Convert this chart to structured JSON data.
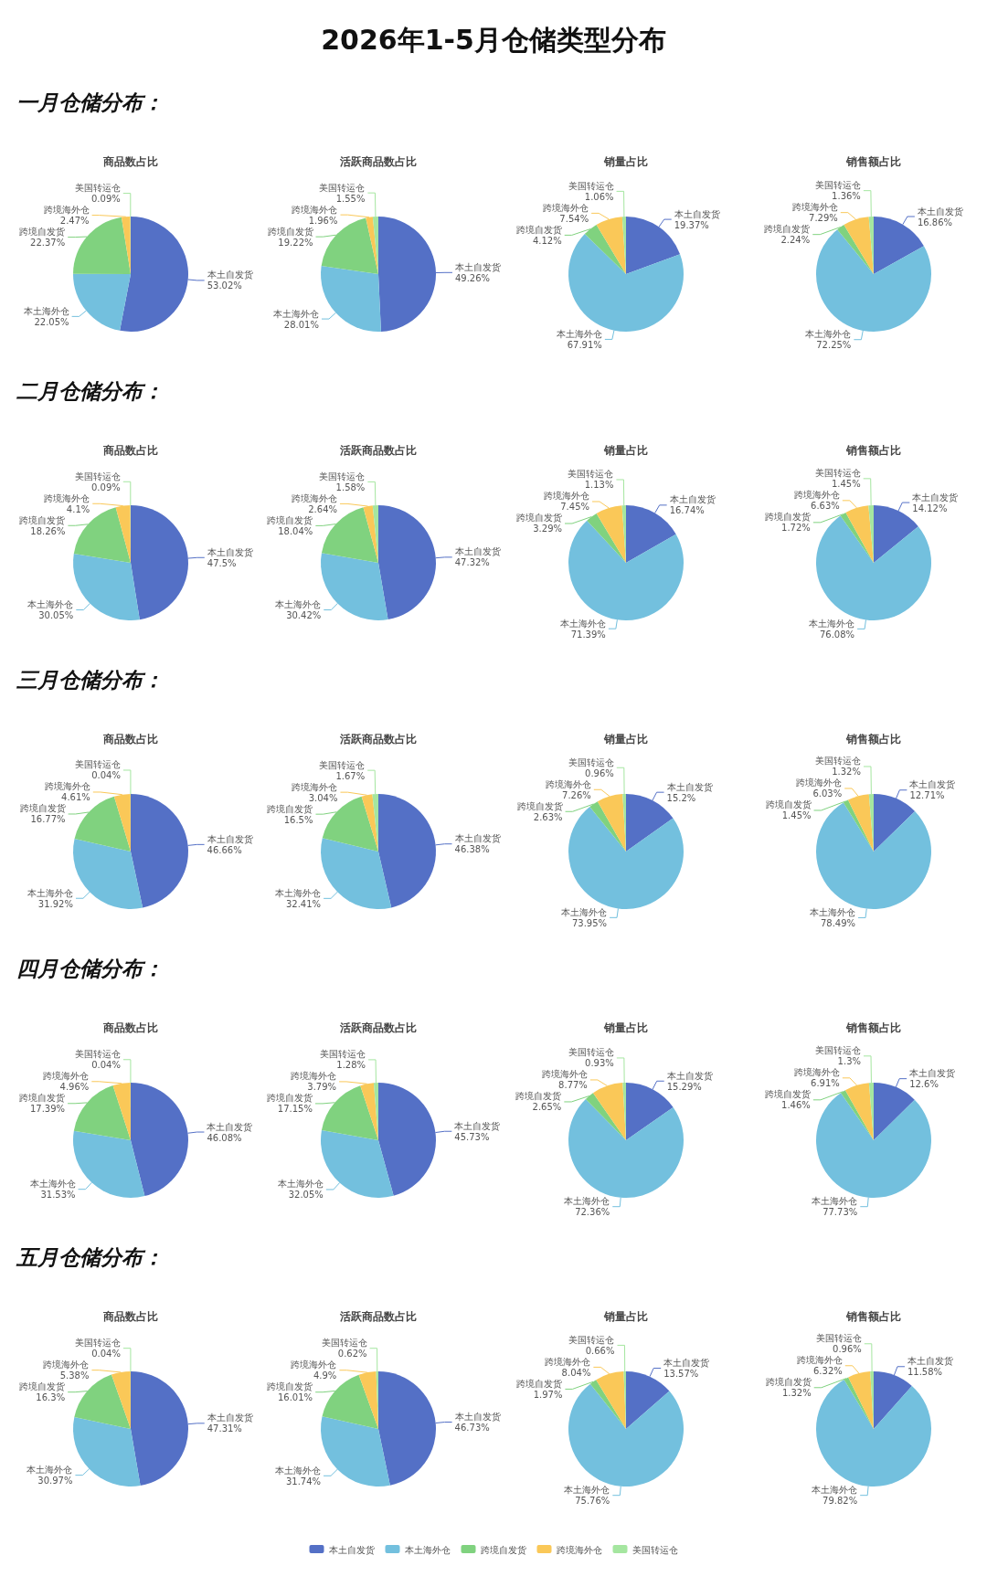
{
  "chart_data": [
    {
      "type": "other",
      "title": "2026年1-5月仓储类型分布"
    },
    {
      "type": "other",
      "title": "一月仓储分布："
    },
    {
      "type": "pie",
      "title": "商品数占比",
      "categories": [
        "本土自发货",
        "本土海外仓",
        "跨境自发货",
        "跨境海外仓",
        "美国转运仓"
      ],
      "values": [
        53.02,
        22.05,
        22.37,
        2.47,
        0.09
      ],
      "value_labels": [
        "53.02%",
        "22.05%",
        "22.37%",
        "2.47%",
        "0.09%"
      ],
      "colors": [
        "#5470c6",
        "#73c0de",
        "#80d27f",
        "#fac858",
        "#a5e6a0"
      ]
    },
    {
      "type": "pie",
      "title": "活跃商品数占比",
      "categories": [
        "本土自发货",
        "本土海外仓",
        "跨境自发货",
        "跨境海外仓",
        "美国转运仓"
      ],
      "values": [
        49.26,
        28.01,
        19.22,
        1.96,
        1.55
      ],
      "value_labels": [
        "49.26%",
        "28.01%",
        "19.22%",
        "1.96%",
        "1.55%"
      ],
      "colors": [
        "#5470c6",
        "#73c0de",
        "#80d27f",
        "#fac858",
        "#a5e6a0"
      ]
    },
    {
      "type": "pie",
      "title": "销量占比",
      "categories": [
        "本土自发货",
        "本土海外仓",
        "跨境自发货",
        "跨境海外仓",
        "美国转运仓"
      ],
      "values": [
        19.37,
        67.91,
        4.12,
        7.54,
        1.06
      ],
      "value_labels": [
        "19.37%",
        "67.91%",
        "4.12%",
        "7.54%",
        "1.06%"
      ],
      "colors": [
        "#5470c6",
        "#73c0de",
        "#80d27f",
        "#fac858",
        "#a5e6a0"
      ]
    },
    {
      "type": "pie",
      "title": "销售额占比",
      "categories": [
        "本土自发货",
        "本土海外仓",
        "跨境自发货",
        "跨境海外仓",
        "美国转运仓"
      ],
      "values": [
        16.86,
        72.25,
        2.24,
        7.29,
        1.36
      ],
      "value_labels": [
        "16.86%",
        "72.25%",
        "2.24%",
        "7.29%",
        "1.36%"
      ],
      "colors": [
        "#5470c6",
        "#73c0de",
        "#80d27f",
        "#fac858",
        "#a5e6a0"
      ]
    },
    {
      "type": "other",
      "title": "二月仓储分布："
    },
    {
      "type": "pie",
      "title": "商品数占比",
      "categories": [
        "本土自发货",
        "本土海外仓",
        "跨境自发货",
        "跨境海外仓",
        "美国转运仓"
      ],
      "values": [
        47.5,
        30.05,
        18.26,
        4.1,
        0.09
      ],
      "value_labels": [
        "47.5%",
        "30.05%",
        "18.26%",
        "4.1%",
        "0.09%"
      ],
      "colors": [
        "#5470c6",
        "#73c0de",
        "#80d27f",
        "#fac858",
        "#a5e6a0"
      ]
    },
    {
      "type": "pie",
      "title": "活跃商品数占比",
      "categories": [
        "本土自发货",
        "本土海外仓",
        "跨境自发货",
        "跨境海外仓",
        "美国转运仓"
      ],
      "values": [
        47.32,
        30.42,
        18.04,
        2.64,
        1.58
      ],
      "value_labels": [
        "47.32%",
        "30.42%",
        "18.04%",
        "2.64%",
        "1.58%"
      ],
      "colors": [
        "#5470c6",
        "#73c0de",
        "#80d27f",
        "#fac858",
        "#a5e6a0"
      ]
    },
    {
      "type": "pie",
      "title": "销量占比",
      "categories": [
        "本土自发货",
        "本土海外仓",
        "跨境自发货",
        "跨境海外仓",
        "美国转运仓"
      ],
      "values": [
        16.74,
        71.39,
        3.29,
        7.45,
        1.13
      ],
      "value_labels": [
        "16.74%",
        "71.39%",
        "3.29%",
        "7.45%",
        "1.13%"
      ],
      "colors": [
        "#5470c6",
        "#73c0de",
        "#80d27f",
        "#fac858",
        "#a5e6a0"
      ]
    },
    {
      "type": "pie",
      "title": "销售额占比",
      "categories": [
        "本土自发货",
        "本土海外仓",
        "跨境自发货",
        "跨境海外仓",
        "美国转运仓"
      ],
      "values": [
        14.12,
        76.08,
        1.72,
        6.63,
        1.45
      ],
      "value_labels": [
        "14.12%",
        "76.08%",
        "1.72%",
        "6.63%",
        "1.45%"
      ],
      "colors": [
        "#5470c6",
        "#73c0de",
        "#80d27f",
        "#fac858",
        "#a5e6a0"
      ]
    },
    {
      "type": "other",
      "title": "三月仓储分布："
    },
    {
      "type": "pie",
      "title": "商品数占比",
      "categories": [
        "本土自发货",
        "本土海外仓",
        "跨境自发货",
        "跨境海外仓",
        "美国转运仓"
      ],
      "values": [
        46.66,
        31.92,
        16.77,
        4.61,
        0.04
      ],
      "value_labels": [
        "46.66%",
        "31.92%",
        "16.77%",
        "4.61%",
        "0.04%"
      ],
      "colors": [
        "#5470c6",
        "#73c0de",
        "#80d27f",
        "#fac858",
        "#a5e6a0"
      ]
    },
    {
      "type": "pie",
      "title": "活跃商品数占比",
      "categories": [
        "本土自发货",
        "本土海外仓",
        "跨境自发货",
        "跨境海外仓",
        "美国转运仓"
      ],
      "values": [
        46.38,
        32.41,
        16.5,
        3.04,
        1.67
      ],
      "value_labels": [
        "46.38%",
        "32.41%",
        "16.5%",
        "3.04%",
        "1.67%"
      ],
      "colors": [
        "#5470c6",
        "#73c0de",
        "#80d27f",
        "#fac858",
        "#a5e6a0"
      ]
    },
    {
      "type": "pie",
      "title": "销量占比",
      "categories": [
        "本土自发货",
        "本土海外仓",
        "跨境自发货",
        "跨境海外仓",
        "美国转运仓"
      ],
      "values": [
        15.2,
        73.95,
        2.63,
        7.26,
        0.96
      ],
      "value_labels": [
        "15.2%",
        "73.95%",
        "2.63%",
        "7.26%",
        "0.96%"
      ],
      "colors": [
        "#5470c6",
        "#73c0de",
        "#80d27f",
        "#fac858",
        "#a5e6a0"
      ]
    },
    {
      "type": "pie",
      "title": "销售额占比",
      "categories": [
        "本土自发货",
        "本土海外仓",
        "跨境自发货",
        "跨境海外仓",
        "美国转运仓"
      ],
      "values": [
        12.71,
        78.49,
        1.45,
        6.03,
        1.32
      ],
      "value_labels": [
        "12.71%",
        "78.49%",
        "1.45%",
        "6.03%",
        "1.32%"
      ],
      "colors": [
        "#5470c6",
        "#73c0de",
        "#80d27f",
        "#fac858",
        "#a5e6a0"
      ]
    },
    {
      "type": "other",
      "title": "四月仓储分布："
    },
    {
      "type": "pie",
      "title": "商品数占比",
      "categories": [
        "本土自发货",
        "本土海外仓",
        "跨境自发货",
        "跨境海外仓",
        "美国转运仓"
      ],
      "values": [
        46.08,
        31.53,
        17.39,
        4.96,
        0.04
      ],
      "value_labels": [
        "46.08%",
        "31.53%",
        "17.39%",
        "4.96%",
        "0.04%"
      ],
      "colors": [
        "#5470c6",
        "#73c0de",
        "#80d27f",
        "#fac858",
        "#a5e6a0"
      ]
    },
    {
      "type": "pie",
      "title": "活跃商品数占比",
      "categories": [
        "本土自发货",
        "本土海外仓",
        "跨境自发货",
        "跨境海外仓",
        "美国转运仓"
      ],
      "values": [
        45.73,
        32.05,
        17.15,
        3.79,
        1.28
      ],
      "value_labels": [
        "45.73%",
        "32.05%",
        "17.15%",
        "3.79%",
        "1.28%"
      ],
      "colors": [
        "#5470c6",
        "#73c0de",
        "#80d27f",
        "#fac858",
        "#a5e6a0"
      ]
    },
    {
      "type": "pie",
      "title": "销量占比",
      "categories": [
        "本土自发货",
        "本土海外仓",
        "跨境自发货",
        "跨境海外仓",
        "美国转运仓"
      ],
      "values": [
        15.29,
        72.36,
        2.65,
        8.77,
        0.93
      ],
      "value_labels": [
        "15.29%",
        "72.36%",
        "2.65%",
        "8.77%",
        "0.93%"
      ],
      "colors": [
        "#5470c6",
        "#73c0de",
        "#80d27f",
        "#fac858",
        "#a5e6a0"
      ]
    },
    {
      "type": "pie",
      "title": "销售额占比",
      "categories": [
        "本土自发货",
        "本土海外仓",
        "跨境自发货",
        "跨境海外仓",
        "美国转运仓"
      ],
      "values": [
        12.6,
        77.73,
        1.46,
        6.91,
        1.3
      ],
      "value_labels": [
        "12.6%",
        "77.73%",
        "1.46%",
        "6.91%",
        "1.3%"
      ],
      "colors": [
        "#5470c6",
        "#73c0de",
        "#80d27f",
        "#fac858",
        "#a5e6a0"
      ]
    },
    {
      "type": "other",
      "title": "五月仓储分布："
    },
    {
      "type": "pie",
      "title": "商品数占比",
      "categories": [
        "本土自发货",
        "本土海外仓",
        "跨境自发货",
        "跨境海外仓",
        "美国转运仓"
      ],
      "values": [
        47.31,
        30.97,
        16.3,
        5.38,
        0.04
      ],
      "value_labels": [
        "47.31%",
        "30.97%",
        "16.3%",
        "5.38%",
        "0.04%"
      ],
      "colors": [
        "#5470c6",
        "#73c0de",
        "#80d27f",
        "#fac858",
        "#a5e6a0"
      ]
    },
    {
      "type": "pie",
      "title": "活跃商品数占比",
      "categories": [
        "本土自发货",
        "本土海外仓",
        "跨境自发货",
        "跨境海外仓",
        "美国转运仓"
      ],
      "values": [
        46.73,
        31.74,
        16.01,
        4.9,
        0.62
      ],
      "value_labels": [
        "46.73%",
        "31.74%",
        "16.01%",
        "4.9%",
        "0.62%"
      ],
      "colors": [
        "#5470c6",
        "#73c0de",
        "#80d27f",
        "#fac858",
        "#a5e6a0"
      ]
    },
    {
      "type": "pie",
      "title": "销量占比",
      "categories": [
        "本土自发货",
        "本土海外仓",
        "跨境自发货",
        "跨境海外仓",
        "美国转运仓"
      ],
      "values": [
        13.57,
        75.76,
        1.97,
        8.04,
        0.66
      ],
      "value_labels": [
        "13.57%",
        "75.76%",
        "1.97%",
        "8.04%",
        "0.66%"
      ],
      "colors": [
        "#5470c6",
        "#73c0de",
        "#80d27f",
        "#fac858",
        "#a5e6a0"
      ]
    },
    {
      "type": "pie",
      "title": "销售额占比",
      "categories": [
        "本土自发货",
        "本土海外仓",
        "跨境自发货",
        "跨境海外仓",
        "美国转运仓"
      ],
      "values": [
        11.58,
        79.82,
        1.32,
        6.32,
        0.96
      ],
      "value_labels": [
        "11.58%",
        "79.82%",
        "1.32%",
        "6.32%",
        "0.96%"
      ],
      "colors": [
        "#5470c6",
        "#73c0de",
        "#80d27f",
        "#fac858",
        "#a5e6a0"
      ],
      "legend": "bottom"
    }
  ]
}
